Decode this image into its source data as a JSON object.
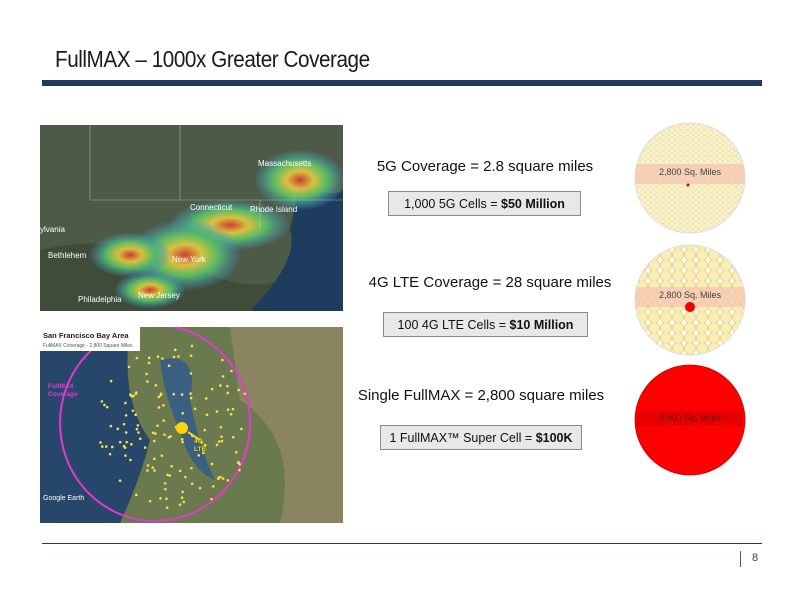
{
  "header": {
    "title": "FullMAX – 1000x Greater Coverage"
  },
  "maps": {
    "east": {
      "labels": [
        "Massachusetts",
        "Connecticut",
        "Rhode Island",
        "New York",
        "New Jersey",
        "Philadelphia",
        "ylvania",
        "Bethlehem"
      ]
    },
    "bay": {
      "title": "San Francisco Bay Area",
      "subtitle": "FullMAX Coverage - 2,800 Square Miles",
      "coverage": "FullMAX Coverage",
      "lte": "4G LTE",
      "credit": "Google Earth"
    }
  },
  "rows": [
    {
      "heading": "5G Coverage = 2.8 square miles",
      "cost_text": "1,000 5G Cells = ",
      "cost_value": "$50 Million",
      "circle_label": "2,800 Sq. Miles"
    },
    {
      "heading": "4G LTE Coverage = 28 square miles",
      "cost_text": "100 4G LTE Cells = ",
      "cost_value": "$10 Million",
      "circle_label": "2,800 Sq. Miles"
    },
    {
      "heading": "Single FullMAX = 2,800 square miles",
      "cost_text": "1 FullMAX™ Super Cell = ",
      "cost_value": "$100K",
      "circle_label": "2,800 Sq. Miles"
    }
  ],
  "footer": {
    "page": "8"
  }
}
